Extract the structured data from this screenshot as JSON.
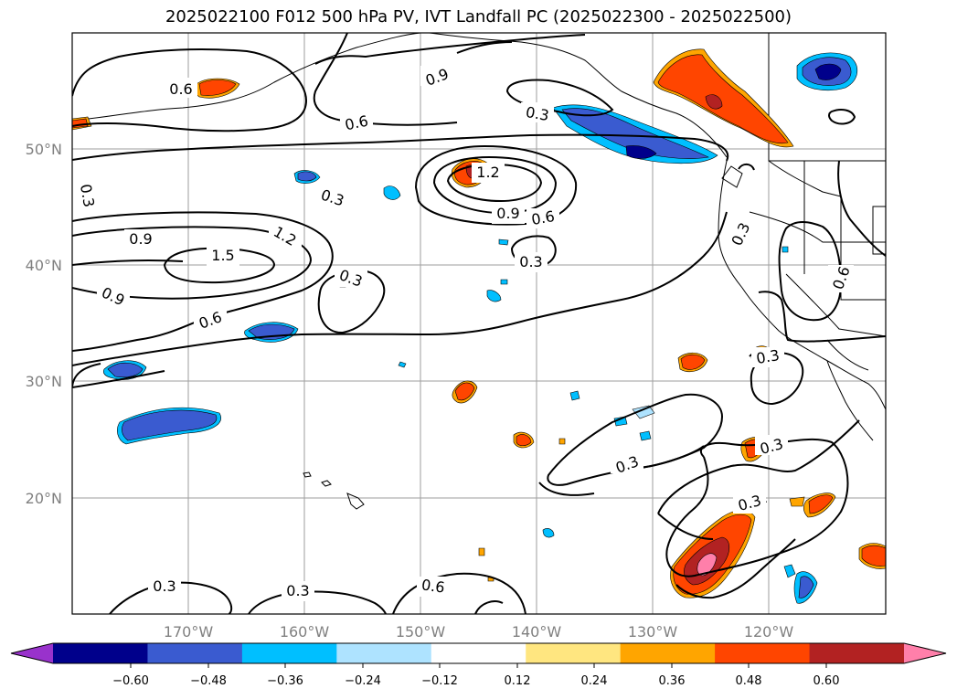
{
  "title": "2025022100 F012 500 hPa PV, IVT Landfall PC (2025022300 - 2025022500)",
  "chart_data": {
    "type": "contour-map",
    "projection": "PlateCarree",
    "lon_range": [
      -180,
      -110
    ],
    "lat_range": [
      10,
      60
    ],
    "x_ticks": [
      {
        "lon": -170,
        "label": "170°W"
      },
      {
        "lon": -160,
        "label": "160°W"
      },
      {
        "lon": -150,
        "label": "150°W"
      },
      {
        "lon": -140,
        "label": "140°W"
      },
      {
        "lon": -130,
        "label": "130°W"
      },
      {
        "lon": -120,
        "label": "120°W"
      }
    ],
    "y_ticks": [
      {
        "lat": 50,
        "label": "50°N"
      },
      {
        "lat": 40,
        "label": "40°N"
      },
      {
        "lat": 30,
        "label": "30°N"
      },
      {
        "lat": 20,
        "label": "20°N"
      }
    ],
    "grid": true,
    "pv_contour_levels": [
      0.3,
      0.6,
      0.9,
      1.2,
      1.5
    ],
    "pv_contour_labels": [
      {
        "lon": -170.1,
        "lat": 57.5,
        "text": "0.6"
      },
      {
        "lon": -148.8,
        "lat": 56.6,
        "text": "0.9"
      },
      {
        "lon": -140.5,
        "lat": 53.7,
        "text": "0.3"
      },
      {
        "lon": -157.7,
        "lat": 52.3,
        "text": "0.6"
      },
      {
        "lon": -178.6,
        "lat": 45.7,
        "text": "0.3"
      },
      {
        "lon": -164.2,
        "lat": 46.0,
        "text": "0.3"
      },
      {
        "lon": -146.0,
        "lat": 48.4,
        "text": "1.2"
      },
      {
        "lon": -143.4,
        "lat": 44.6,
        "text": "0.9"
      },
      {
        "lon": -140.0,
        "lat": 44.2,
        "text": "0.6"
      },
      {
        "lon": -140.3,
        "lat": 40.3,
        "text": "0.3"
      },
      {
        "lon": -175.8,
        "lat": 42.4,
        "text": "0.9"
      },
      {
        "lon": -168.9,
        "lat": 40.9,
        "text": "1.5"
      },
      {
        "lon": -164.4,
        "lat": 42.6,
        "text": "1.2"
      },
      {
        "lon": -176.2,
        "lat": 36.9,
        "text": "0.9"
      },
      {
        "lon": -158.8,
        "lat": 38.8,
        "text": "0.3"
      },
      {
        "lon": -169.2,
        "lat": 34.4,
        "text": "0.6"
      },
      {
        "lon": -118.2,
        "lat": 43.1,
        "text": "0.3"
      },
      {
        "lon": -114.0,
        "lat": 38.1,
        "text": "0.6"
      },
      {
        "lon": -116.0,
        "lat": 31.9,
        "text": "0.3"
      },
      {
        "lon": -117.1,
        "lat": 25.1,
        "text": "0.3"
      },
      {
        "lon": -122.0,
        "lat": 23.6,
        "text": "0.3"
      },
      {
        "lon": -116.0,
        "lat": 20.0,
        "text": "0.3"
      },
      {
        "lon": -175.6,
        "lat": 12.4,
        "text": "0.3"
      },
      {
        "lon": -158.7,
        "lat": 12.0,
        "text": "0.3"
      },
      {
        "lon": -148.9,
        "lat": 12.4,
        "text": "0.6"
      }
    ],
    "colorbar": {
      "extend": "both",
      "boundaries": [
        -0.72,
        -0.6,
        -0.48,
        -0.36,
        -0.24,
        -0.12,
        0.12,
        0.24,
        0.36,
        0.48,
        0.6,
        0.72
      ],
      "colors": [
        "#9932cc",
        "#00008b",
        "#3a5bd0",
        "#00bfff",
        "#aee3ff",
        "#ffffff",
        "#ffe680",
        "#ffa500",
        "#ff4500",
        "#b22222",
        "#ff7faa"
      ],
      "tick_labels": [
        "−0.60",
        "−0.48",
        "−0.36",
        "−0.24",
        "−0.12",
        "0.12",
        "0.24",
        "0.36",
        "0.48",
        "0.60"
      ]
    }
  }
}
